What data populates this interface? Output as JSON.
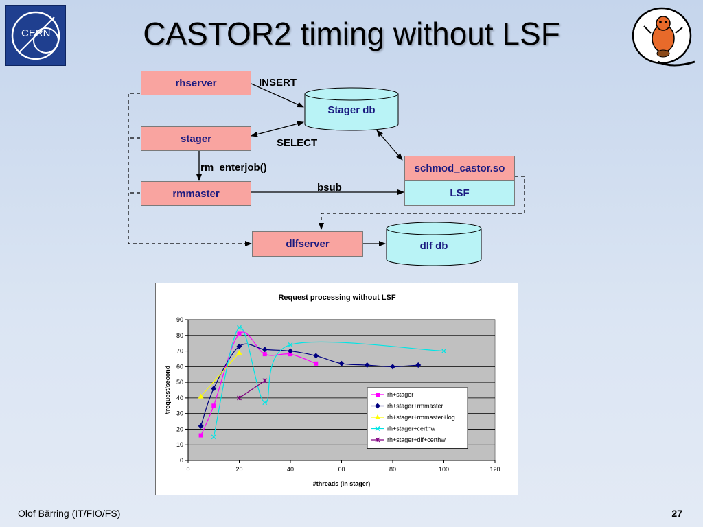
{
  "slide": {
    "title": "CASTOR2 timing without LSF",
    "footer_author": "Olof Bärring (IT/FIO/FS)",
    "page_number": "27"
  },
  "logos": {
    "left": "cern-logo",
    "left_text": "CERN",
    "right": "beaver-mascot-icon"
  },
  "diagram": {
    "nodes": {
      "rhserver": "rhserver",
      "stager": "stager",
      "rmmaster": "rmmaster",
      "schmod": "schmod_castor.so",
      "lsf": "LSF",
      "dlfserver": "dlfserver",
      "stager_db": "Stager db",
      "dlf_db": "dlf db"
    },
    "edge_labels": {
      "insert": "INSERT",
      "select": "SELECT",
      "rm_enterjob": "rm_enterjob()",
      "bsub": "bsub"
    },
    "colors": {
      "process_box": "#f9a4a0",
      "database": "#b9f3f6"
    }
  },
  "chart_data": {
    "type": "line",
    "title": "Request processing without LSF",
    "xlabel": "#threads (in stager)",
    "ylabel": "#request/second",
    "xlim": [
      0,
      120
    ],
    "ylim": [
      0,
      90
    ],
    "xticks": [
      0,
      20,
      40,
      60,
      80,
      100,
      120
    ],
    "yticks": [
      0,
      10,
      20,
      30,
      40,
      50,
      60,
      70,
      80,
      90
    ],
    "grid": "horizontal",
    "legend": "bottom-right inside plot",
    "plot_background": "#c0c0c0",
    "series": [
      {
        "name": "rh+stager",
        "color": "#ff00ff",
        "marker": "square",
        "x": [
          5,
          10,
          20,
          30,
          40,
          50
        ],
        "y": [
          16,
          35,
          81,
          68,
          68,
          62
        ]
      },
      {
        "name": "rh+stager+rmmaster",
        "color": "#000080",
        "marker": "diamond",
        "x": [
          5,
          10,
          20,
          30,
          40,
          50,
          60,
          70,
          80,
          90
        ],
        "y": [
          22,
          46,
          73,
          71,
          70,
          67,
          62,
          61,
          60,
          61
        ]
      },
      {
        "name": "rh+stager+rmmaster+log",
        "color": "#ffff00",
        "marker": "triangle",
        "x": [
          5,
          20
        ],
        "y": [
          41,
          69
        ]
      },
      {
        "name": "rh+stager+certhw",
        "color": "#00e5e5",
        "marker": "cross",
        "x": [
          10,
          20,
          30,
          40,
          100
        ],
        "y": [
          15,
          85,
          37,
          74,
          70
        ]
      },
      {
        "name": "rh+stager+dlf+certhw",
        "color": "#800080",
        "marker": "star",
        "x": [
          20,
          30
        ],
        "y": [
          40,
          51
        ]
      }
    ]
  }
}
